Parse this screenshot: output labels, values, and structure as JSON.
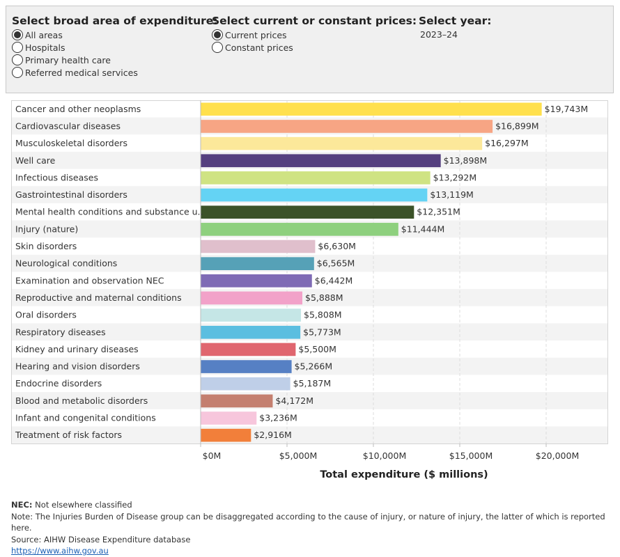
{
  "controls": {
    "area": {
      "title": "Select broad area of expenditure:",
      "options": [
        "All areas",
        "Hospitals",
        "Primary health care",
        "Referred medical services"
      ],
      "selected": 0
    },
    "prices": {
      "title": "Select current or constant prices:",
      "options": [
        "Current prices",
        "Constant prices"
      ],
      "selected": 0
    },
    "year": {
      "title": "Select year:",
      "value": "2023–24"
    }
  },
  "chart_data": {
    "type": "bar",
    "orientation": "horizontal",
    "categories": [
      "Cancer and other neoplasms",
      "Cardiovascular diseases",
      "Musculoskeletal disorders",
      "Well care",
      "Infectious diseases",
      "Gastrointestinal disorders",
      "Mental health conditions and substance u..",
      "Injury (nature)",
      "Skin disorders",
      "Neurological conditions",
      "Examination and observation NEC",
      "Reproductive and maternal conditions",
      "Oral disorders",
      "Respiratory diseases",
      "Kidney and urinary diseases",
      "Hearing and vision disorders",
      "Endocrine disorders",
      "Blood and metabolic disorders",
      "Infant and congenital conditions",
      "Treatment of risk factors"
    ],
    "values": [
      19743,
      16899,
      16297,
      13898,
      13292,
      13119,
      12351,
      11444,
      6630,
      6565,
      6442,
      5888,
      5808,
      5773,
      5500,
      5266,
      5187,
      4172,
      3236,
      2916
    ],
    "data_labels": [
      "$19,743M",
      "$16,899M",
      "$16,297M",
      "$13,898M",
      "$13,292M",
      "$13,119M",
      "$12,351M",
      "$11,444M",
      "$6,630M",
      "$6,565M",
      "$6,442M",
      "$5,888M",
      "$5,808M",
      "$5,773M",
      "$5,500M",
      "$5,266M",
      "$5,187M",
      "$4,172M",
      "$3,236M",
      "$2,916M"
    ],
    "colors": [
      "#ffe04d",
      "#f7a584",
      "#fce89a",
      "#55407f",
      "#cfe383",
      "#64d3f4",
      "#3b5228",
      "#8ed07e",
      "#e0bfcc",
      "#56a1b7",
      "#7f6bb5",
      "#f2a2c9",
      "#c5e6e6",
      "#5bbee0",
      "#e0666f",
      "#5680c4",
      "#bfcfe8",
      "#c47f6f",
      "#f7c6dc",
      "#f27f3a"
    ],
    "xlim": [
      0,
      21500
    ],
    "xticks": [
      0,
      5000,
      10000,
      15000,
      20000
    ],
    "xtick_labels": [
      "$0M",
      "$5,000M",
      "$10,000M",
      "$15,000M",
      "$20,000M"
    ],
    "xlabel": "Total expenditure ($ millions)",
    "grid": true
  },
  "footer": {
    "nec_abbr": "NEC:",
    "nec_text": " Not elsewhere classified",
    "note": "Note: The Injuries Burden of Disease group can be disaggregated according to the cause of injury, or nature of injury, the latter of which is reported here.",
    "source": "Source: AIHW Disease Expenditure database",
    "link": "https://www.aihw.gov.au"
  }
}
